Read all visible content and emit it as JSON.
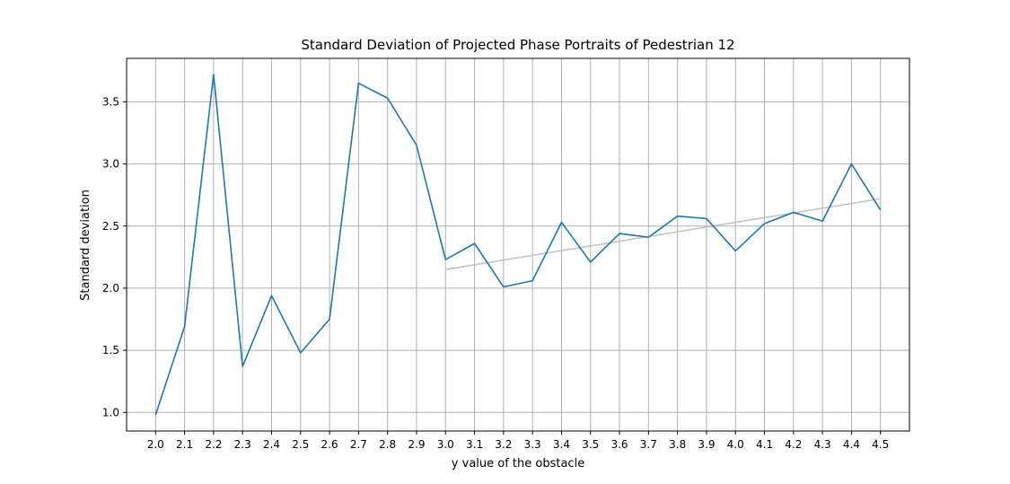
{
  "chart_data": {
    "type": "line",
    "title": "Standard Deviation of Projected Phase Portraits of Pedestrian 12",
    "xlabel": "y value of the obstacle",
    "ylabel": "Standard deviation",
    "xlim": [
      1.9,
      4.6
    ],
    "ylim": [
      0.85,
      3.85
    ],
    "x_ticks": [
      "2.0",
      "2.1",
      "2.2",
      "2.3",
      "2.4",
      "2.5",
      "2.6",
      "2.7",
      "2.8",
      "2.9",
      "3.0",
      "3.1",
      "3.2",
      "3.3",
      "3.4",
      "3.5",
      "3.6",
      "3.7",
      "3.8",
      "3.9",
      "4.0",
      "4.1",
      "4.2",
      "4.3",
      "4.4",
      "4.5"
    ],
    "y_ticks": [
      "1.0",
      "1.5",
      "2.0",
      "2.5",
      "3.0",
      "3.5"
    ],
    "grid": true,
    "series": [
      {
        "color": "#1f77b4",
        "x": [
          2.0,
          2.1,
          2.2,
          2.3,
          2.4,
          2.5,
          2.6,
          2.7,
          2.8,
          2.9,
          3.0,
          3.1,
          3.2,
          3.3,
          3.4,
          3.5,
          3.6,
          3.7,
          3.8,
          3.9,
          4.0,
          4.1,
          4.2,
          4.3,
          4.4,
          4.5
        ],
        "y": [
          0.98,
          1.69,
          3.72,
          1.37,
          1.94,
          1.48,
          1.75,
          3.65,
          3.53,
          3.15,
          2.23,
          2.36,
          2.01,
          2.06,
          2.53,
          2.21,
          2.44,
          2.41,
          2.58,
          2.56,
          2.3,
          2.52,
          2.61,
          2.54,
          3.0,
          2.63
        ]
      },
      {
        "color": "#bfbfbf",
        "x": [
          3.0,
          4.5
        ],
        "y": [
          2.15,
          2.72
        ]
      }
    ]
  }
}
